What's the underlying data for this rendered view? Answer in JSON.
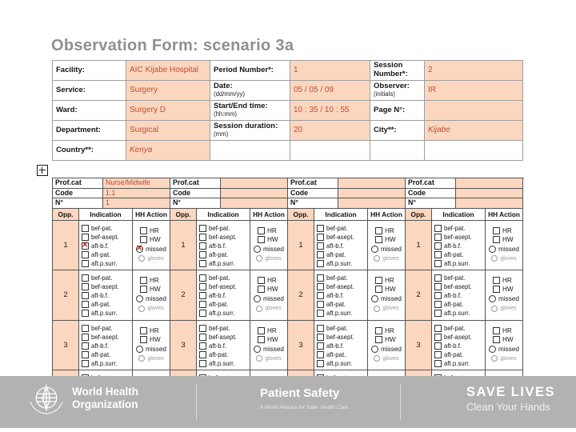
{
  "slide": {
    "title": "Observation Form: scenario 3a"
  },
  "colors": {
    "peach_fill": "#fcd7bf",
    "handwriting_red": "#c14b35",
    "title_grey": "#8f8f8f",
    "footer_grey": "#b2b2b2"
  },
  "form_header": {
    "rows": [
      {
        "cells": [
          {
            "label": "Facility:",
            "sub": "",
            "value": "AIC Kijabe Hospital",
            "fill": true,
            "italic": false
          },
          {
            "label": "Period Number*:",
            "sub": "",
            "value": "1",
            "fill": true,
            "italic": false
          },
          {
            "label": "Session Number*:",
            "sub": "",
            "value": "2",
            "fill": true,
            "italic": false
          }
        ]
      },
      {
        "cells": [
          {
            "label": "Service:",
            "sub": "",
            "value": "Surgery",
            "fill": true,
            "italic": false
          },
          {
            "label": "Date:",
            "sub": "(dd/mm/yy)",
            "value": "05 / 05 / 09",
            "fill": true,
            "italic": false
          },
          {
            "label": "Observer:",
            "sub": "(initials)",
            "value": "IR",
            "fill": true,
            "italic": false
          }
        ]
      },
      {
        "cells": [
          {
            "label": "Ward:",
            "sub": "",
            "value": "Surgery D",
            "fill": true,
            "italic": false
          },
          {
            "label": "Start/End time:",
            "sub": "(hh:mm)",
            "value": "10 : 35 / 10 : 55",
            "fill": true,
            "italic": false
          },
          {
            "label": "Page N°:",
            "sub": "",
            "value": "",
            "fill": true,
            "italic": false
          }
        ]
      },
      {
        "cells": [
          {
            "label": "Department:",
            "sub": "",
            "value": "Surgical",
            "fill": true,
            "italic": false
          },
          {
            "label": "Session duration:",
            "sub": "(mm)",
            "value": "20",
            "fill": true,
            "italic": false
          },
          {
            "label": "City**:",
            "sub": "",
            "value": "Kijabe",
            "fill": true,
            "italic": true
          }
        ]
      },
      {
        "cells": [
          {
            "label": "Country**:",
            "sub": "",
            "value": "Kenya",
            "fill": true,
            "italic": true
          },
          {
            "label": "",
            "sub": "",
            "value": "",
            "fill": false,
            "italic": false
          },
          {
            "label": "",
            "sub": "",
            "value": "",
            "fill": false,
            "italic": false
          }
        ]
      }
    ]
  },
  "obs_table": {
    "col_headers": {
      "prof_cat": "Prof.cat",
      "code": "Code",
      "n": "N°",
      "opp": "Opp.",
      "indication": "Indication",
      "action": "HH Action"
    },
    "groups": [
      {
        "prof_cat": "Nurse/Midwife",
        "code": "1.1",
        "n": "1"
      },
      {
        "prof_cat": "",
        "code": "",
        "n": ""
      },
      {
        "prof_cat": "",
        "code": "",
        "n": ""
      },
      {
        "prof_cat": "",
        "code": "",
        "n": ""
      }
    ],
    "opportunity_numbers": [
      "1",
      "2",
      "3",
      ""
    ],
    "indications": [
      "bef-pat.",
      "bef-asept.",
      "aft-b.f.",
      "aft-pat.",
      "aft.p.surr."
    ],
    "actions": [
      {
        "label": "HR",
        "shape": "square",
        "muted": false
      },
      {
        "label": "HW",
        "shape": "square",
        "muted": false
      },
      {
        "label": "missed",
        "shape": "circle",
        "muted": false
      },
      {
        "label": "gloves",
        "shape": "circle",
        "muted": true
      }
    ],
    "checks": [
      {
        "group": 0,
        "row": 0,
        "kind": "indication",
        "index": 2
      },
      {
        "group": 0,
        "row": 0,
        "kind": "action",
        "index": 2
      }
    ]
  },
  "footer": {
    "who": {
      "line1": "World Health",
      "line2": "Organization"
    },
    "patient_safety": {
      "title": "Patient Safety",
      "subtitle": "A World Alliance for Safer Health Care"
    },
    "campaign": {
      "title": "SAVE LIVES",
      "subtitle": "Clean Your Hands"
    }
  }
}
